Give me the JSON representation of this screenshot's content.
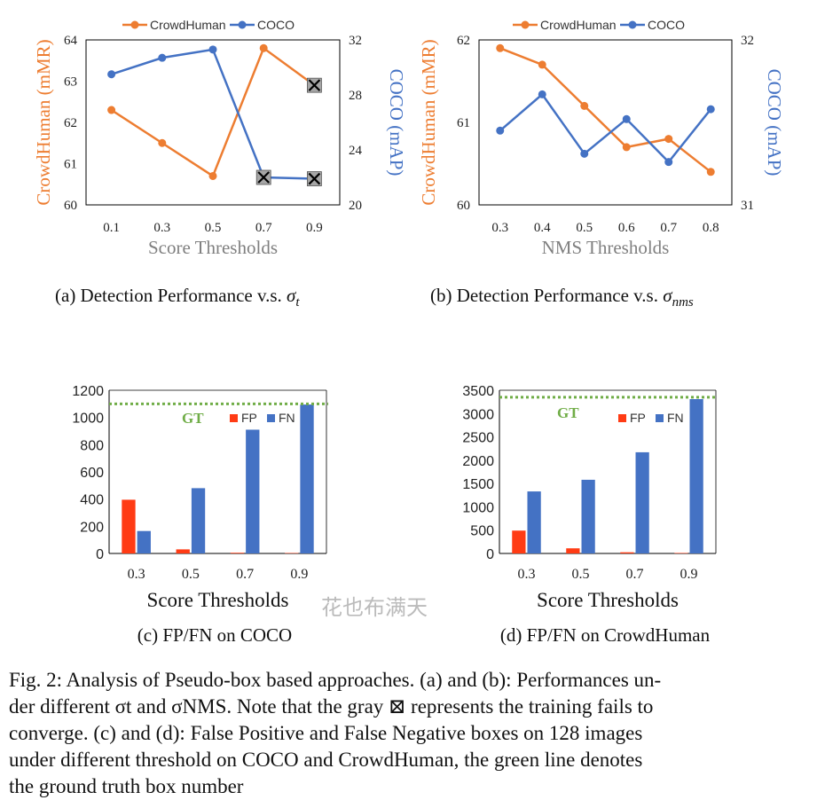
{
  "figure": {
    "caption_lines": [
      "Fig. 2: Analysis of Pseudo-box based approaches. (a) and (b): Performances un-",
      "der different σt and σNMS. Note that the gray ⊠ represents the training fails to",
      "converge. (c) and (d): False Positive and False Negative boxes on 128 images",
      "under different threshold on COCO and CrowdHuman, the green line denotes",
      "the ground truth box number"
    ],
    "watermark": "花也布满天"
  },
  "colors": {
    "crowdhuman": "#ED7D31",
    "coco": "#4472C4",
    "fp": "#FF3B14",
    "fn": "#4472C4",
    "gt": "#70AD47",
    "fail_marker": "#A6A6A6",
    "axis_label_grey": "#7F7F7F"
  },
  "chart_data": [
    {
      "id": "a",
      "type": "line",
      "panel_caption_prefix": "(a) Detection Performance v.s. ",
      "panel_caption_symbol": "σ",
      "panel_caption_sub": "t",
      "xlabel": "Score Thresholds",
      "ylabel_left": "CrowdHuman (mMR)",
      "ylabel_right": "COCO (mAP)",
      "x": [
        "0.1",
        "0.3",
        "0.5",
        "0.7",
        "0.9"
      ],
      "y_left_lim": [
        60,
        64
      ],
      "y_left_ticks": [
        "60",
        "61",
        "62",
        "63",
        "64"
      ],
      "y_right_lim": [
        20,
        32
      ],
      "y_right_ticks": [
        "20",
        "24",
        "28",
        "32"
      ],
      "series": [
        {
          "name": "CrowdHuman",
          "axis": "left",
          "values": [
            62.3,
            61.5,
            60.7,
            63.8,
            62.9
          ],
          "failed": [
            false,
            false,
            false,
            false,
            true
          ]
        },
        {
          "name": "COCO",
          "axis": "right",
          "values": [
            29.5,
            30.7,
            31.3,
            22.0,
            21.9
          ],
          "failed": [
            false,
            false,
            false,
            true,
            true
          ]
        }
      ],
      "legend": "top"
    },
    {
      "id": "b",
      "type": "line",
      "panel_caption_prefix": "(b) Detection Performance v.s. ",
      "panel_caption_symbol": "σ",
      "panel_caption_sub": "nms",
      "xlabel": "NMS Thresholds",
      "ylabel_left": "CrowdHuman (mMR)",
      "ylabel_right": "COCO (mAP)",
      "x": [
        "0.3",
        "0.4",
        "0.5",
        "0.6",
        "0.7",
        "0.8"
      ],
      "y_left_lim": [
        60,
        62
      ],
      "y_left_ticks": [
        "60",
        "61",
        "62"
      ],
      "y_right_lim": [
        31,
        32
      ],
      "y_right_ticks": [
        "31",
        "32"
      ],
      "series": [
        {
          "name": "CrowdHuman",
          "axis": "left",
          "values": [
            61.9,
            61.7,
            61.2,
            60.7,
            60.8,
            60.4
          ],
          "failed": [
            false,
            false,
            false,
            false,
            false,
            false
          ]
        },
        {
          "name": "COCO",
          "axis": "right",
          "values": [
            31.45,
            31.67,
            31.31,
            31.52,
            31.26,
            31.58
          ],
          "failed": [
            false,
            false,
            false,
            false,
            false,
            false
          ]
        }
      ],
      "legend": "top"
    },
    {
      "id": "c",
      "type": "bar",
      "panel_caption": "(c) FP/FN on COCO",
      "xlabel": "Score Thresholds",
      "categories": [
        "0.3",
        "0.5",
        "0.7",
        "0.9"
      ],
      "ylim": [
        0,
        1200
      ],
      "y_ticks": [
        "0",
        "200",
        "400",
        "600",
        "800",
        "1000",
        "1200"
      ],
      "gt_label": "GT",
      "gt_value": 1100,
      "series": [
        {
          "name": "FP",
          "values": [
            395,
            30,
            5,
            3
          ]
        },
        {
          "name": "FN",
          "values": [
            165,
            480,
            910,
            1095
          ]
        }
      ],
      "legend": "top-right"
    },
    {
      "id": "d",
      "type": "bar",
      "panel_caption": "(d) FP/FN on CrowdHuman",
      "xlabel": "Score Thresholds",
      "categories": [
        "0.3",
        "0.5",
        "0.7",
        "0.9"
      ],
      "ylim": [
        0,
        3500
      ],
      "y_ticks": [
        "0",
        "500",
        "1000",
        "1500",
        "2000",
        "2500",
        "3000",
        "3500"
      ],
      "gt_label": "GT",
      "gt_value": 3350,
      "series": [
        {
          "name": "FP",
          "values": [
            490,
            110,
            25,
            10
          ]
        },
        {
          "name": "FN",
          "values": [
            1330,
            1580,
            2170,
            3310
          ]
        }
      ],
      "legend": "top-right"
    }
  ]
}
